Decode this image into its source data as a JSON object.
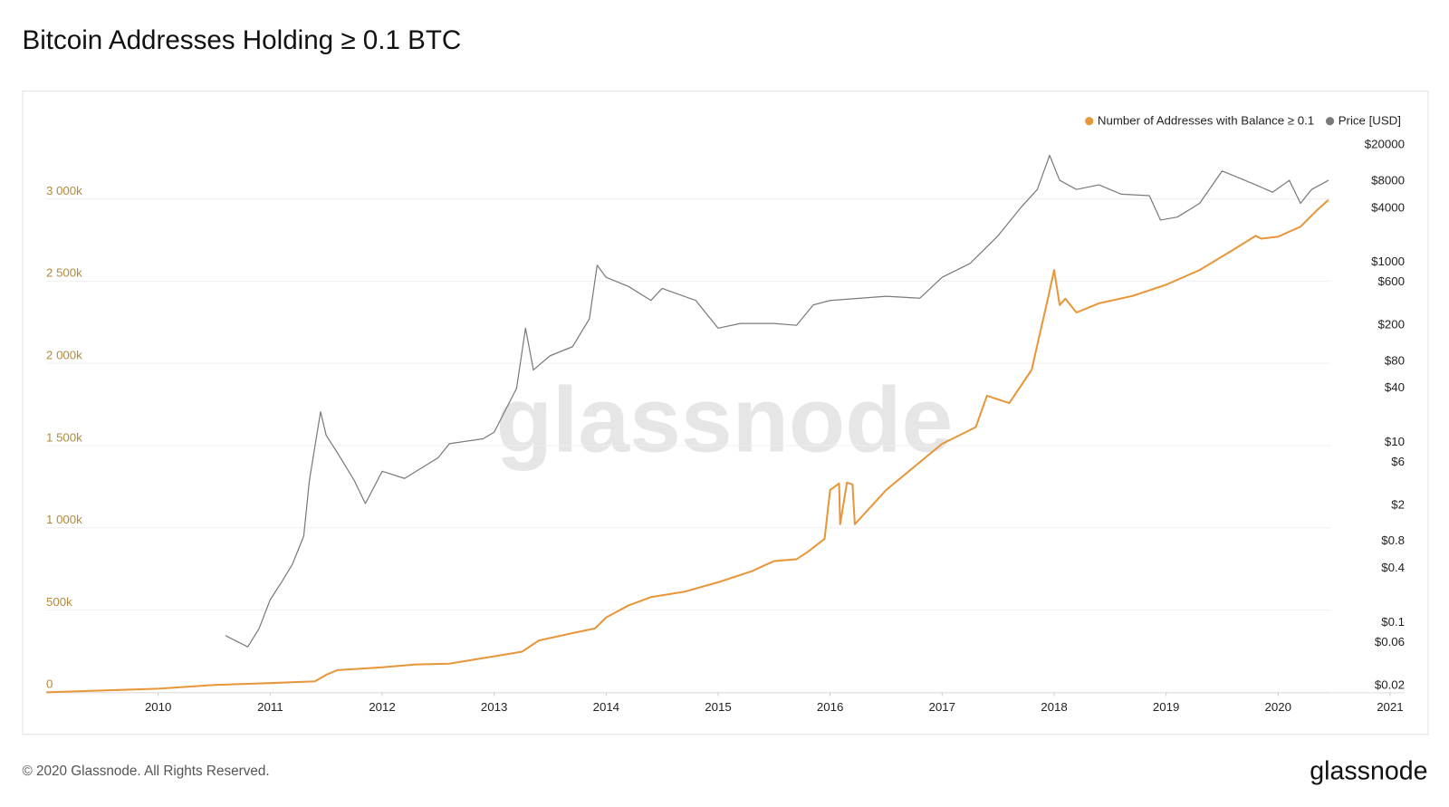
{
  "chart_data": {
    "type": "line",
    "title": "Bitcoin Addresses Holding ≥ 0.1 BTC",
    "watermark": "glassnode",
    "legend": "top-right",
    "grid": true,
    "xlim": [
      2009.0,
      2021.13
    ],
    "xticks": [
      2010,
      2011,
      2012,
      2013,
      2014,
      2015,
      2016,
      2017,
      2018,
      2019,
      2020,
      2021
    ],
    "ylim": [
      0,
      3478000
    ],
    "yticks": [
      0,
      {
        "value": 500000,
        "label": "500k"
      },
      {
        "value": 1000000,
        "label": "1 000k"
      },
      {
        "value": 1500000,
        "label": "1 500k"
      },
      {
        "value": 2000000,
        "label": "2 000k"
      },
      {
        "value": 2500000,
        "label": "2 500k"
      },
      {
        "value": 3000000,
        "label": "3 000k"
      }
    ],
    "y2lim": [
      0.0169,
      37800
    ],
    "y2log": true,
    "y2ticks": [
      {
        "value": 20000,
        "label": "$20000"
      },
      {
        "value": 8000,
        "label": "$8000"
      },
      {
        "value": 4000,
        "label": "$4000"
      },
      {
        "value": 1000,
        "label": "$1000"
      },
      {
        "value": 600,
        "label": "$600"
      },
      {
        "value": 200,
        "label": "$200"
      },
      {
        "value": 80,
        "label": "$80"
      },
      {
        "value": 40,
        "label": "$40"
      },
      {
        "value": 10,
        "label": "$10"
      },
      {
        "value": 6,
        "label": "$6"
      },
      {
        "value": 2,
        "label": "$2"
      },
      {
        "value": 0.8,
        "label": "$0.8"
      },
      {
        "value": 0.4,
        "label": "$0.4"
      },
      {
        "value": 0.1,
        "label": "$0.1"
      },
      {
        "value": 0.06,
        "label": "$0.06"
      },
      {
        "value": 0.02,
        "label": "$0.02"
      }
    ],
    "series": [
      {
        "name": "Number of Addresses with Balance ≥ 0.1",
        "color": "#e8963a",
        "x": [
          2009.0,
          2010.0,
          2010.5,
          2011.0,
          2011.4,
          2011.5,
          2011.6,
          2012.0,
          2012.3,
          2012.6,
          2012.9,
          2013.0,
          2013.25,
          2013.4,
          2013.7,
          2013.9,
          2014.0,
          2014.2,
          2014.4,
          2014.7,
          2015.0,
          2015.3,
          2015.5,
          2015.7,
          2015.8,
          2015.95,
          2016.0,
          2016.08,
          2016.09,
          2016.15,
          2016.2,
          2016.22,
          2016.5,
          2016.8,
          2017.0,
          2017.3,
          2017.4,
          2017.6,
          2017.8,
          2017.95,
          2018.0,
          2018.05,
          2018.1,
          2018.2,
          2018.4,
          2018.7,
          2019.0,
          2019.3,
          2019.6,
          2019.8,
          2019.85,
          2020.0,
          2020.2,
          2020.35,
          2020.45
        ],
        "values": [
          0,
          22000,
          45000,
          56000,
          67000,
          107000,
          135000,
          152000,
          169000,
          174000,
          208000,
          219000,
          247000,
          315000,
          360000,
          388000,
          455000,
          528000,
          579000,
          612000,
          669000,
          736000,
          798000,
          809000,
          854000,
          933000,
          1230000,
          1270000,
          1022000,
          1275000,
          1264000,
          1022000,
          1230000,
          1399000,
          1511000,
          1612000,
          1803000,
          1758000,
          1961000,
          2410000,
          2567000,
          2354000,
          2393000,
          2309000,
          2365000,
          2410000,
          2478000,
          2567000,
          2691000,
          2775000,
          2758000,
          2770000,
          2831000,
          2933000,
          2994000
        ]
      },
      {
        "name": "Price [USD]",
        "color": "#7a7a7a",
        "axis": "y2",
        "x": [
          2010.6,
          2010.8,
          2010.9,
          2011.0,
          2011.1,
          2011.2,
          2011.3,
          2011.35,
          2011.45,
          2011.5,
          2011.6,
          2011.75,
          2011.85,
          2012.0,
          2012.2,
          2012.5,
          2012.6,
          2012.9,
          2013.0,
          2013.2,
          2013.28,
          2013.35,
          2013.5,
          2013.7,
          2013.85,
          2013.92,
          2014.0,
          2014.2,
          2014.4,
          2014.5,
          2014.8,
          2015.0,
          2015.2,
          2015.5,
          2015.7,
          2015.85,
          2016.0,
          2016.5,
          2016.8,
          2017.0,
          2017.25,
          2017.5,
          2017.7,
          2017.85,
          2017.96,
          2018.05,
          2018.2,
          2018.4,
          2018.6,
          2018.85,
          2018.95,
          2019.1,
          2019.3,
          2019.5,
          2019.6,
          2019.8,
          2019.95,
          2020.1,
          2020.2,
          2020.3,
          2020.45
        ],
        "values": [
          0.072,
          0.054,
          0.086,
          0.18,
          0.28,
          0.45,
          0.92,
          3.8,
          22,
          12,
          7.7,
          3.8,
          2.1,
          4.8,
          4.0,
          6.8,
          9.7,
          11,
          13,
          40,
          186,
          64,
          92,
          116,
          236,
          929,
          682,
          540,
          378,
          514,
          378,
          186,
          210,
          210,
          200,
          337,
          378,
          420,
          400,
          682,
          973,
          1977,
          4018,
          6442,
          15417,
          8147,
          6442,
          7244,
          5715,
          5500,
          2951,
          3180,
          4518,
          10325,
          9183,
          7244,
          5998,
          8147,
          4518,
          6442,
          8147
        ]
      }
    ]
  },
  "footer": {
    "copyright": "© 2020 Glassnode. All Rights Reserved.",
    "logo": "glassnode"
  }
}
